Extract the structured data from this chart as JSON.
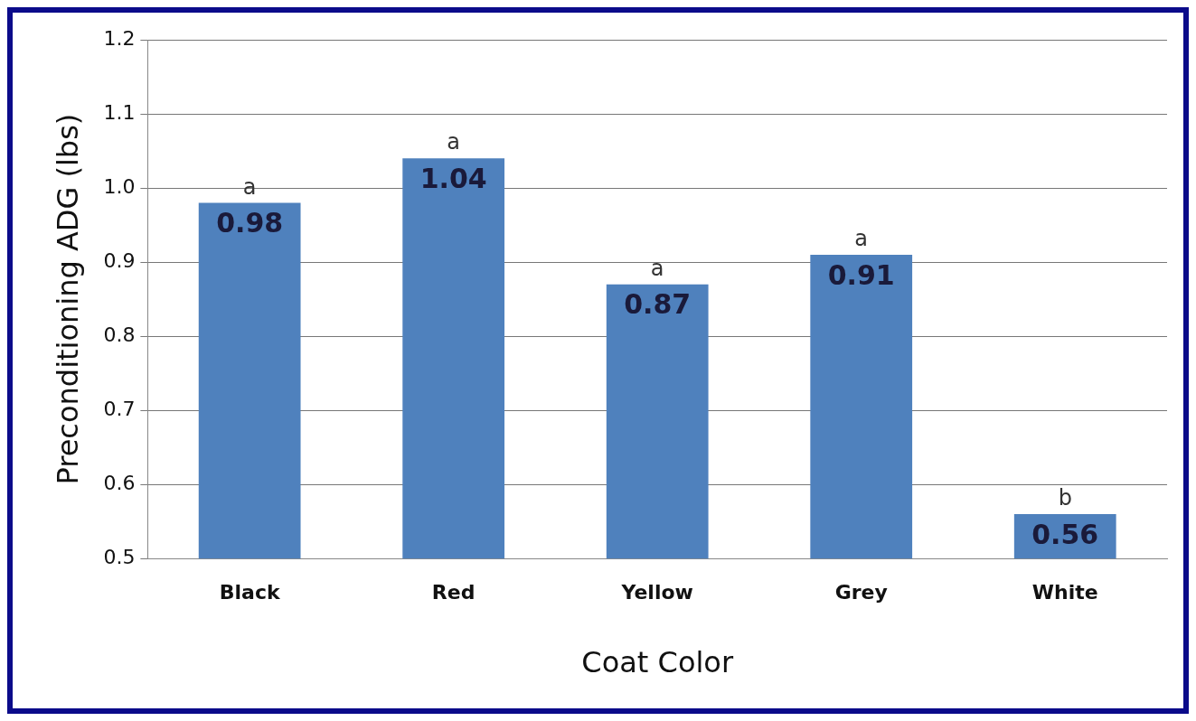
{
  "chart_data": {
    "type": "bar",
    "xlabel": "Coat Color",
    "ylabel": "Preconditioning ADG (lbs)",
    "categories": [
      "Black",
      "Red",
      "Yellow",
      "Grey",
      "White"
    ],
    "values": [
      0.98,
      1.04,
      0.87,
      0.91,
      0.56
    ],
    "color": "#4f81bd",
    "ylim": [
      0.5,
      1.2
    ],
    "yticks": [
      0.5,
      0.6,
      0.7,
      0.8,
      0.9,
      {
        "value": 1,
        "label": "1.0"
      },
      1.1,
      1.2
    ],
    "grid": "y",
    "data_labels": true,
    "annotations": [
      {
        "text": "a",
        "x": "Black",
        "y": 0.98
      },
      {
        "text": "a",
        "x": "Red",
        "y": 1.04
      },
      {
        "text": "a",
        "x": "Yellow",
        "y": 0.87
      },
      {
        "text": "a",
        "x": "Grey",
        "y": 0.91
      },
      {
        "text": "b",
        "x": "White",
        "y": 0.56
      }
    ]
  }
}
